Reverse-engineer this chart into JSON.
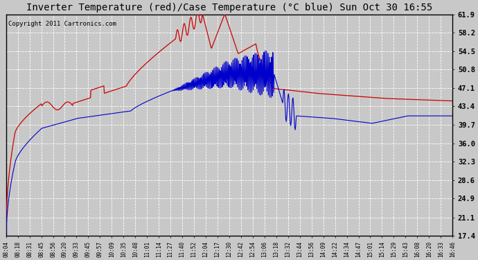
{
  "title": "Inverter Temperature (red)/Case Temperature (°C blue) Sun Oct 30 16:55",
  "copyright": "Copyright 2011 Cartronics.com",
  "y_ticks": [
    17.4,
    21.1,
    24.9,
    28.6,
    32.3,
    36.0,
    39.7,
    43.4,
    47.1,
    50.8,
    54.5,
    58.2,
    61.9
  ],
  "y_min": 17.4,
  "y_max": 61.9,
  "x_labels": [
    "08:04",
    "08:18",
    "08:31",
    "08:45",
    "08:56",
    "09:20",
    "09:33",
    "09:45",
    "09:57",
    "10:09",
    "10:35",
    "10:48",
    "11:01",
    "11:14",
    "11:27",
    "11:40",
    "11:52",
    "12:04",
    "12:17",
    "12:30",
    "12:42",
    "12:54",
    "13:06",
    "13:18",
    "13:32",
    "13:44",
    "13:56",
    "14:09",
    "14:22",
    "14:34",
    "14:47",
    "15:01",
    "15:14",
    "15:29",
    "15:43",
    "16:08",
    "16:20",
    "16:33",
    "16:46"
  ],
  "background_color": "#c8c8c8",
  "plot_bg_color": "#c8c8c8",
  "grid_color": "#ffffff",
  "title_color": "#000000",
  "line_red_color": "#cc0000",
  "line_blue_color": "#0000cc",
  "title_fontsize": 10,
  "copyright_fontsize": 6.5
}
